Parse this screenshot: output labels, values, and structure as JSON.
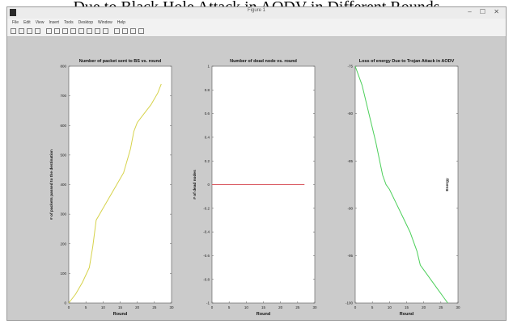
{
  "caption": "Due to Black Hole Attack in AODV in Different Rounds",
  "window": {
    "title": "Figure 1",
    "controls": "– ☐ ✕",
    "menu": [
      "File",
      "Edit",
      "View",
      "Insert",
      "Tools",
      "Desktop",
      "Window",
      "Help"
    ]
  },
  "toolbar": {
    "buttons": [
      "new-icon",
      "open-icon",
      "save-icon",
      "print-icon",
      "pointer-icon",
      "zoom-in-icon",
      "zoom-out-icon",
      "pan-icon",
      "rotate-icon",
      "datacursor-icon",
      "brush-icon",
      "link-icon",
      "colorbar-icon",
      "legend-icon",
      "hide-plot-icon",
      "show-plot-icon"
    ]
  },
  "colors": {
    "figure_bg": "#cbcbcb",
    "axes_bg": "#ffffff",
    "series1": "#d6d24a",
    "series2": "#d9575f",
    "series3": "#4ccf5a"
  },
  "chart_data": [
    {
      "type": "line",
      "title": "Number of packet sent to BS vs. round",
      "xlabel": "Round",
      "ylabel": "# of packets passed to the destination",
      "xlim": [
        0,
        30
      ],
      "ylim": [
        0,
        800
      ],
      "xticks": [
        "0",
        "5",
        "10",
        "15",
        "20",
        "25",
        "30"
      ],
      "yticks": [
        "0",
        "100",
        "200",
        "300",
        "400",
        "500",
        "600",
        "700",
        "800"
      ],
      "series": [
        {
          "color": "#d6d24a",
          "x": [
            0,
            2,
            4,
            6,
            7,
            8,
            9,
            10,
            12,
            14,
            16,
            18,
            19,
            20,
            22,
            24,
            26,
            27
          ],
          "y": [
            0,
            30,
            70,
            120,
            190,
            280,
            300,
            320,
            360,
            400,
            440,
            520,
            580,
            610,
            640,
            670,
            710,
            740
          ]
        }
      ]
    },
    {
      "type": "line",
      "title": "Number of dead node vs. round",
      "xlabel": "Round",
      "ylabel": "# of dead nodes",
      "xlim": [
        0,
        30
      ],
      "ylim": [
        -1,
        1
      ],
      "xticks": [
        "0",
        "5",
        "10",
        "15",
        "20",
        "25",
        "30"
      ],
      "yticks": [
        "-1",
        "-0.8",
        "-0.6",
        "-0.4",
        "-0.2",
        "0",
        "0.2",
        "0.4",
        "0.6",
        "0.8",
        "1"
      ],
      "series": [
        {
          "color": "#d9575f",
          "x": [
            0,
            27
          ],
          "y": [
            0,
            0
          ]
        }
      ]
    },
    {
      "type": "line",
      "title": "Loss of energy Due to Trojan Attack in AODV",
      "xlabel": "Round",
      "ylabel": "Energy",
      "xlim": [
        0,
        30
      ],
      "ylim": [
        -100,
        -75
      ],
      "xticks": [
        "0",
        "5",
        "10",
        "15",
        "20",
        "25",
        "30"
      ],
      "yticks": [
        "-75",
        "-80",
        "-85",
        "-90",
        "-95",
        "-100"
      ],
      "series": [
        {
          "color": "#4ccf5a",
          "x": [
            0,
            2,
            4,
            6,
            8,
            9,
            10,
            12,
            14,
            16,
            18,
            19,
            20,
            22,
            24,
            26,
            27
          ],
          "y": [
            -75,
            -77,
            -80,
            -83,
            -86.5,
            -87.5,
            -88,
            -89.5,
            -91,
            -92.5,
            -94.5,
            -96,
            -96.5,
            -97.5,
            -98.5,
            -99.5,
            -100
          ]
        }
      ]
    }
  ]
}
